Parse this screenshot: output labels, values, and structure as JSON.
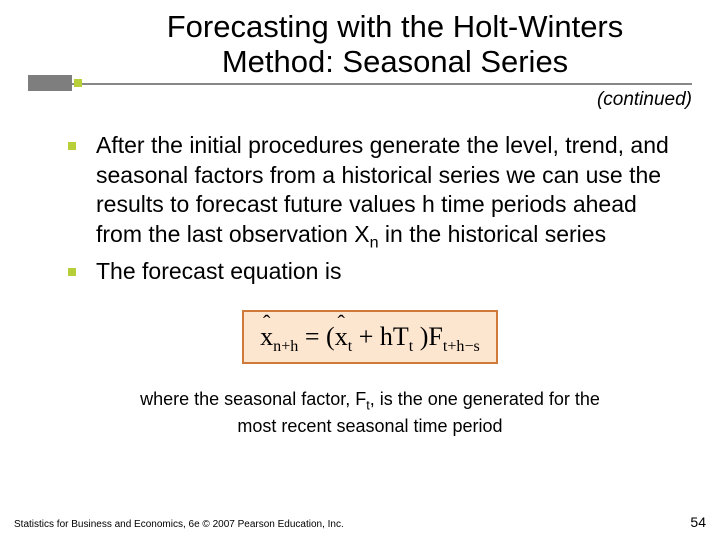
{
  "title_line1": "Forecasting with the Holt-Winters",
  "title_line2": "Method:  Seasonal Series",
  "continued": "(continued)",
  "bullets": {
    "b1_a": "After the initial procedures generate the level, trend, and seasonal factors from a historical series we can use the results to forecast  future values  h  time periods ahead from the last observation X",
    "b1_sub": "n",
    "b1_b": " in the historical series",
    "b2": "The forecast equation is"
  },
  "equation": {
    "lhs_var": "x",
    "lhs_sub": "n+h",
    "eq": " = (",
    "t1_var": "x",
    "t1_sub": "t",
    "plus": " + hT",
    "t2_sub": "t",
    "close": " )F",
    "f_sub": "t+h−s"
  },
  "footnote_a": "where the seasonal factor, F",
  "footnote_sub": "t",
  "footnote_b": ", is the one generated for the most recent seasonal time period",
  "footer_text": "Statistics for Business and Economics, 6e © 2007 Pearson Education, Inc.",
  "page_number": "54",
  "colors": {
    "rule": "#888888",
    "accent_box": "#7e7e7e",
    "accent_sq": "#b9cf3a",
    "eq_border": "#d07a3a",
    "eq_bg": "#fde6cf"
  }
}
